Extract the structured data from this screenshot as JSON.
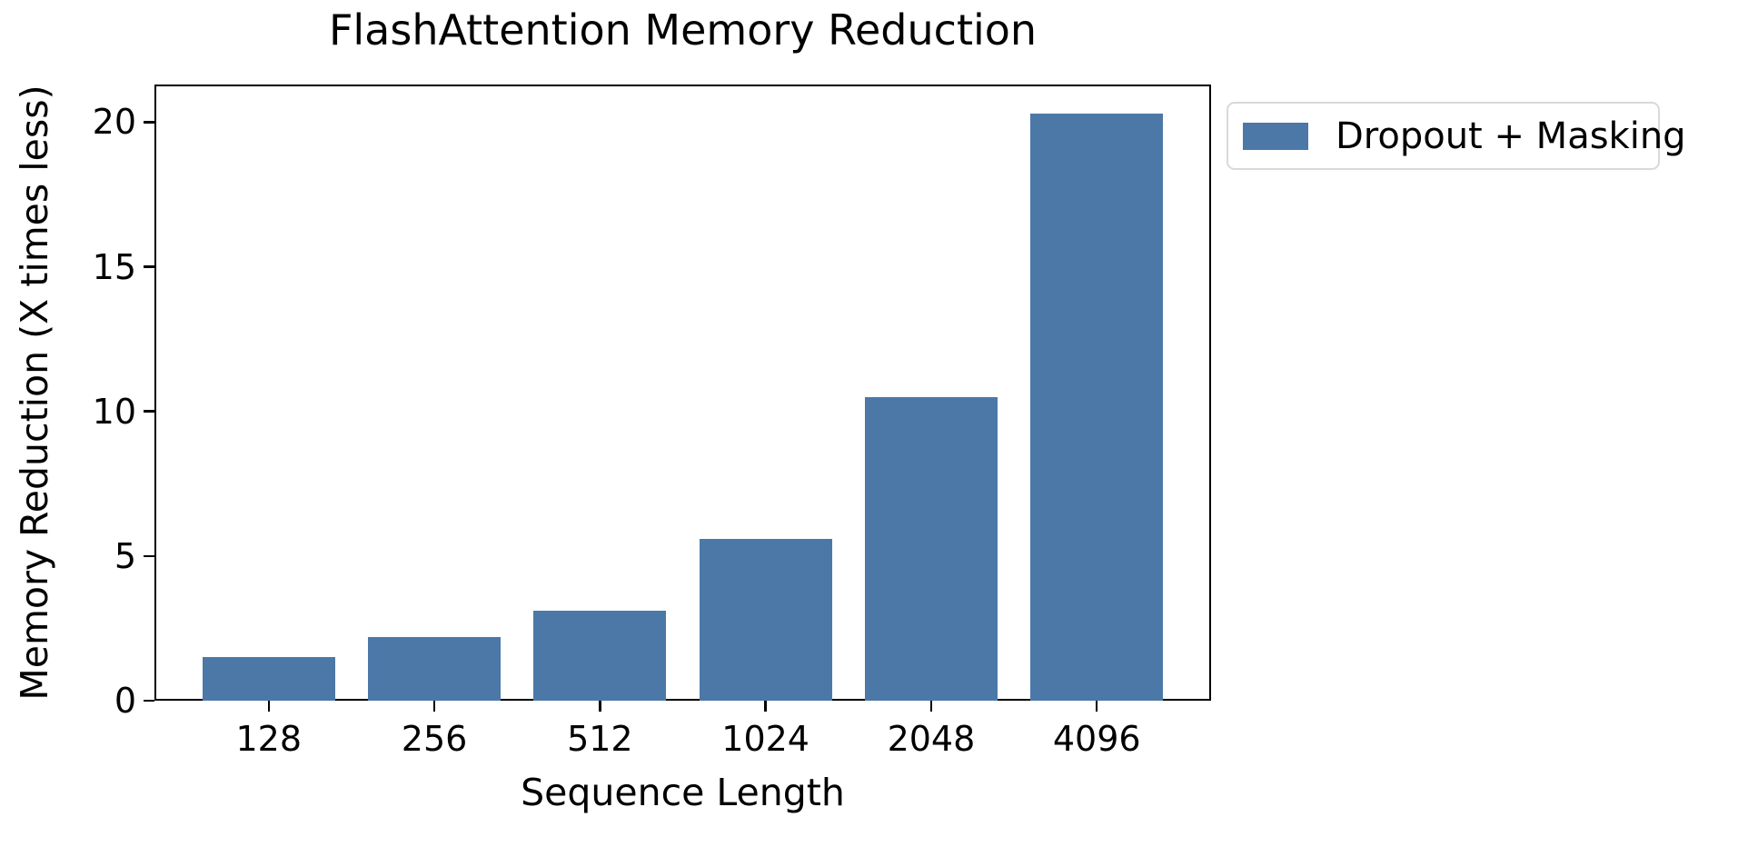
{
  "chart_data": {
    "type": "bar",
    "title": "FlashAttention Memory Reduction",
    "xlabel": "Sequence Length",
    "ylabel": "Memory Reduction (X times less)",
    "categories": [
      "128",
      "256",
      "512",
      "1024",
      "2048",
      "4096"
    ],
    "series": [
      {
        "name": "Dropout + Masking",
        "color": "#4C78A8",
        "values": [
          1.5,
          2.2,
          3.1,
          5.6,
          10.5,
          20.3
        ]
      }
    ],
    "yticks": [
      0,
      5,
      10,
      15,
      20
    ],
    "ylim": [
      0,
      21.3
    ],
    "grid": false,
    "legend_position": "outside upper right",
    "axes_frame_color": "#000000",
    "background_color": "#ffffff"
  }
}
